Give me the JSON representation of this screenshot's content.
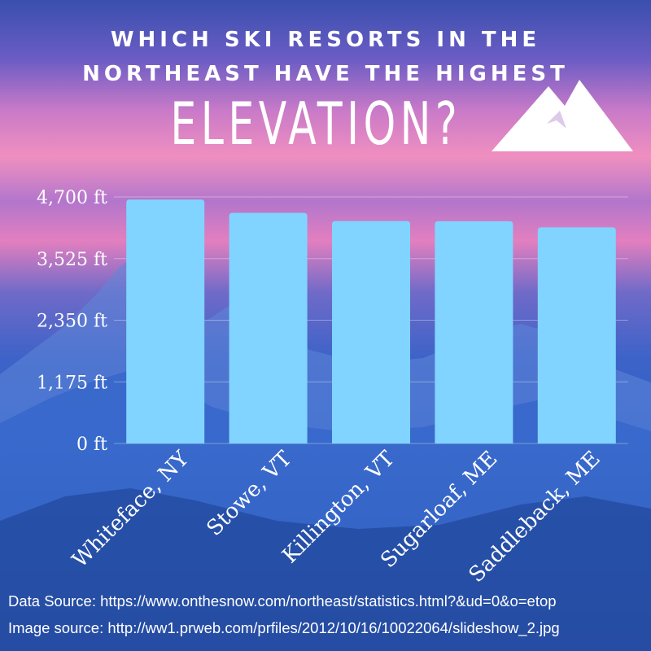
{
  "title": {
    "line1": "WHICH SKI RESORTS IN THE",
    "line2": "NORTHEAST HAVE THE HIGHEST",
    "line3": "ELEVATION?"
  },
  "icon": "mountain-icon",
  "colors": {
    "bar": "#80d4ff",
    "text": "#ffffff",
    "sky_pink": "#f08fc0",
    "sky_blue": "#3d63c8"
  },
  "chart_data": {
    "type": "bar",
    "title": "WHICH SKI RESORTS IN THE NORTHEAST HAVE THE HIGHEST ELEVATION?",
    "categories": [
      "Whiteface, NY",
      "Stowe, VT",
      "Killington, VT",
      "Sugarloaf, ME",
      "Saddleback, ME"
    ],
    "values": [
      4650,
      4395,
      4241,
      4237,
      4120
    ],
    "ylim": [
      0,
      4700
    ],
    "yticks": [
      0,
      1175,
      2350,
      3525,
      4700
    ],
    "ytick_labels": [
      "0 ft",
      "1,175 ft",
      "2,350 ft",
      "3,525 ft",
      "4,700 ft"
    ],
    "xlabel": "",
    "ylabel": "",
    "grid": true,
    "legend": "none"
  },
  "footer": {
    "data_source": "Data Source: https://www.onthesnow.com/northeast/statistics.html?&ud=0&o=etop",
    "image_source": "Image source: http://ww1.prweb.com/prfiles/2012/10/16/10022064/slideshow_2.jpg"
  }
}
